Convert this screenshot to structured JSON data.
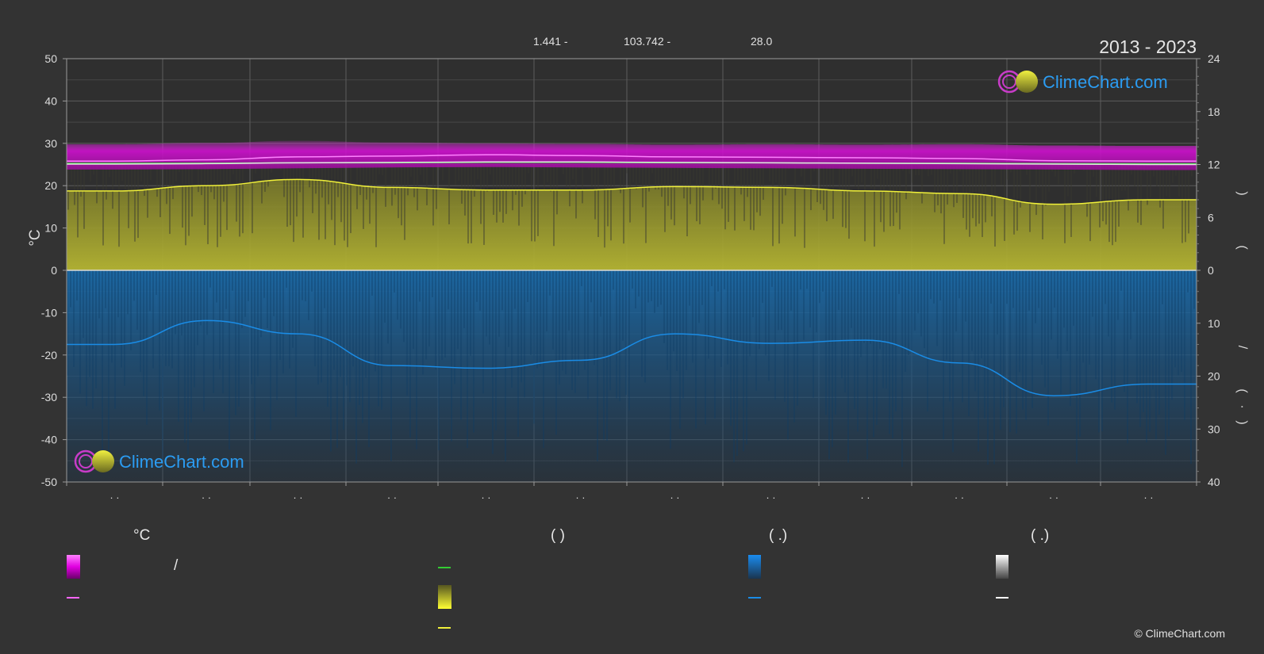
{
  "header": {
    "lat": "1.441 -",
    "lon": "103.742 -",
    "elev": "28.0",
    "period": "2013 - 2023"
  },
  "brand": {
    "name": "ClimeChart.com",
    "copyright": "© ClimeChart.com"
  },
  "colors": {
    "background": "#333333",
    "temp_band": "#e012e0",
    "temp_line": "#ff66ff",
    "green_line": "#33cc33",
    "sun_band": "#b5b52e",
    "sun_line": "#f0f03a",
    "rain_band": "#1a64a0",
    "rain_line": "#1a8ce6",
    "brand_blue": "#2b9cf2"
  },
  "legend": {
    "col1_head": "°C",
    "col2_head": "(          )",
    "col3_head": "(   .)",
    "col4_head": "(   .)",
    "slash": "/"
  },
  "chart_data": {
    "type": "area",
    "left_axis": {
      "label": "°C",
      "ticks": [
        50,
        40,
        30,
        20,
        10,
        0,
        -10,
        -20,
        -30,
        -40,
        -50
      ],
      "range": [
        -50,
        50
      ]
    },
    "right_axis_top": {
      "ticks": [
        24,
        18,
        12,
        6,
        0
      ],
      "range": [
        0,
        24
      ],
      "label_glyphs": [
        ")",
        "("
      ]
    },
    "right_axis_bottom": {
      "ticks": [
        0,
        10,
        20,
        30,
        40
      ],
      "range": [
        0,
        40
      ],
      "label_glyphs": [
        "/",
        "(",
        "·",
        ")"
      ]
    },
    "month_count": 12,
    "month_label": "· ·",
    "series": [
      {
        "key": "temp_max",
        "values": [
          25.8,
          26.1,
          26.8,
          27.0,
          27.3,
          27.1,
          26.8,
          26.7,
          26.6,
          26.4,
          25.9,
          25.8
        ]
      },
      {
        "key": "temp_mean",
        "values": [
          25.1,
          25.2,
          25.4,
          25.5,
          25.6,
          25.6,
          25.5,
          25.4,
          25.3,
          25.2,
          25.1,
          25.0
        ]
      },
      {
        "key": "temp_band_top",
        "values": [
          29.8,
          30.1,
          30.6,
          30.2,
          30.0,
          29.9,
          29.7,
          29.8,
          29.7,
          29.8,
          29.5,
          29.4
        ]
      },
      {
        "key": "temp_band_bottom",
        "values": [
          23.8,
          23.9,
          24.1,
          24.3,
          24.4,
          24.3,
          24.2,
          24.1,
          24.0,
          23.9,
          23.8,
          23.7
        ]
      },
      {
        "key": "green_line",
        "values": [
          25.3,
          25.3,
          25.4,
          25.4,
          25.5,
          25.5,
          25.4,
          25.4,
          25.3,
          25.3,
          25.2,
          25.2
        ]
      },
      {
        "key": "sunshine_hours",
        "values": [
          9.0,
          9.6,
          10.3,
          9.4,
          9.1,
          9.1,
          9.5,
          9.4,
          9.0,
          8.7,
          7.5,
          8.0
        ]
      },
      {
        "key": "precip_mm",
        "values": [
          14.0,
          9.5,
          12.0,
          18.0,
          18.5,
          17.0,
          12.0,
          13.8,
          13.2,
          17.5,
          23.7,
          21.5
        ]
      }
    ]
  }
}
